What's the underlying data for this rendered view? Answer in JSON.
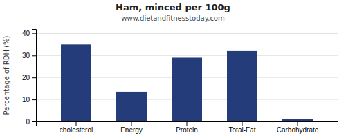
{
  "chart_data": {
    "type": "bar",
    "title": "Ham, minced per 100g",
    "subtitle": "www.dietandfitnesstoday.com",
    "categories": [
      "cholesterol",
      "Energy",
      "Protein",
      "Total-Fat",
      "Carbohydrate"
    ],
    "values": [
      35,
      13.5,
      29,
      32,
      1.2
    ],
    "color": "#253C7A",
    "ylabel": "Percentage of RDH (%)",
    "ylim": [
      0,
      42
    ],
    "yticks": [
      0,
      10,
      20,
      30,
      40
    ],
    "grid": true
  }
}
